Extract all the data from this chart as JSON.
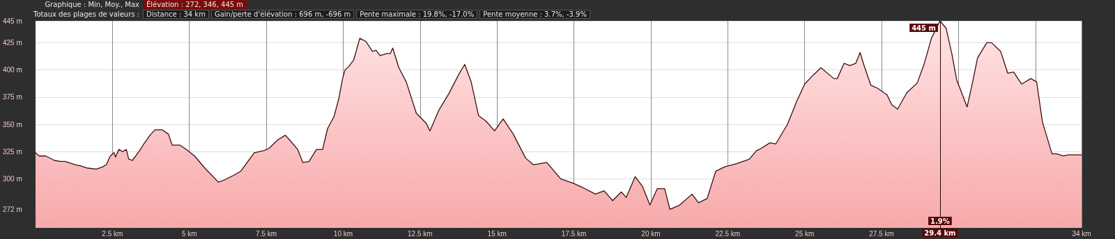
{
  "chart_data": {
    "type": "area",
    "annotations": [
      "Graphique : Min, Moy., Max",
      "Élévation : 272, 346, 445 m",
      "Totaux des plages de valeurs :",
      "Distance : 34 km",
      "Gain/perte d'élévation : 696 m, -696 m",
      "Pente maximale : 19.8%, -17.0%",
      "Pente moyenne : 3.7%, -3.9%",
      {
        "text": "445 m",
        "x": 29.4,
        "y": 445
      },
      {
        "text": "1.9%",
        "x": 29.4
      }
    ],
    "x": [
      0,
      0.12,
      0.33,
      0.61,
      0.81,
      0.97,
      1.17,
      1.29,
      1.46,
      1.66,
      1.98,
      2.18,
      2.3,
      2.43,
      2.55,
      2.6,
      2.71,
      2.83,
      2.95,
      3.03,
      3.15,
      3.36,
      3.52,
      3.72,
      3.88,
      4.12,
      4.32,
      4.44,
      4.69,
      4.85,
      5.17,
      5.5,
      5.94,
      6.14,
      6.42,
      6.67,
      7.11,
      7.43,
      7.59,
      7.88,
      8.12,
      8.28,
      8.52,
      8.69,
      8.89,
      9.13,
      9.33,
      9.49,
      9.7,
      9.86,
      9.98,
      10.06,
      10.18,
      10.34,
      10.54,
      10.74,
      10.95,
      11.07,
      11.2,
      11.41,
      11.53,
      11.61,
      11.81,
      12.05,
      12.38,
      12.7,
      12.82,
      13.11,
      13.43,
      13.76,
      13.95,
      14.16,
      14.4,
      14.64,
      14.92,
      15.2,
      15.53,
      15.93,
      16.18,
      16.62,
      17.07,
      17.47,
      17.79,
      18.2,
      18.48,
      18.76,
      19.04,
      19.2,
      19.49,
      19.73,
      19.97,
      20.21,
      20.45,
      20.62,
      20.94,
      21.34,
      21.55,
      21.83,
      22.11,
      22.4,
      22.8,
      23.2,
      23.44,
      23.53,
      23.87,
      24.06,
      24.44,
      24.74,
      25.0,
      25.27,
      25.53,
      25.95,
      26.06,
      26.28,
      26.47,
      26.66,
      26.8,
      26.93,
      27.15,
      27.38,
      27.68,
      27.83,
      28.02,
      28.32,
      28.66,
      28.89,
      29.12,
      29.4,
      29.6,
      29.79,
      29.94,
      30.28,
      30.43,
      30.62,
      30.92,
      31.07,
      31.37,
      31.6,
      31.79,
      32.05,
      32.35,
      32.54,
      32.73,
      33.04,
      33.19,
      33.41,
      33.56,
      34
    ],
    "series": [
      {
        "color": "#3a0f10",
        "values": [
          324,
          321,
          321,
          317,
          316,
          316,
          314,
          313,
          312,
          310,
          309,
          311,
          313,
          321,
          324,
          320,
          327,
          325,
          327,
          318,
          317,
          325,
          332,
          340,
          345,
          345,
          341,
          331,
          331,
          328,
          321,
          310,
          297,
          299,
          303,
          307,
          324,
          326,
          328,
          336,
          340,
          335,
          327,
          315,
          316,
          327,
          327,
          346,
          357,
          374,
          392,
          400,
          403,
          409,
          429,
          426,
          417,
          418,
          413,
          415,
          415,
          420,
          402,
          389,
          360,
          351,
          344,
          363,
          378,
          396,
          405,
          389,
          358,
          353,
          344,
          355,
          341,
          319,
          313,
          315,
          300,
          296,
          292,
          286,
          289,
          280,
          288,
          283,
          302,
          293,
          276,
          291,
          291,
          272,
          276,
          286,
          278,
          282,
          307,
          311,
          314,
          318,
          326,
          327,
          333,
          332,
          350,
          371,
          387,
          395,
          402,
          392,
          392,
          406,
          404,
          406,
          416,
          404,
          386,
          383,
          377,
          368,
          364,
          379,
          388,
          406,
          429,
          445,
          438,
          414,
          391,
          366,
          385,
          411,
          425,
          425,
          417,
          397,
          398,
          387,
          392,
          389,
          352,
          323,
          323,
          321,
          322,
          322
        ]
      }
    ],
    "xlim": [
      0,
      34
    ],
    "xticks": [
      {
        "value": 2.5,
        "label": "2.5 km"
      },
      {
        "value": 5,
        "label": "5 km"
      },
      {
        "value": 7.5,
        "label": "7.5 km"
      },
      {
        "value": 10,
        "label": "10 km"
      },
      {
        "value": 12.5,
        "label": "12.5 km"
      },
      {
        "value": 15,
        "label": "15 km"
      },
      {
        "value": 17.5,
        "label": "17.5 km"
      },
      {
        "value": 20,
        "label": "20 km"
      },
      {
        "value": 22.5,
        "label": "22.5 km"
      },
      {
        "value": 25,
        "label": "25 km"
      },
      {
        "value": 27.5,
        "label": "27.5 km"
      },
      {
        "value": 30,
        "label": null
      },
      {
        "value": 32.5,
        "label": null
      },
      {
        "value": 34,
        "label": "34 km"
      }
    ],
    "ylim": [
      255,
      445
    ],
    "yticks": [
      {
        "value": 272,
        "label": "272 m"
      },
      {
        "value": 300,
        "label": "300 m"
      },
      {
        "value": 325,
        "label": "325 m"
      },
      {
        "value": 350,
        "label": "350 m"
      },
      {
        "value": 375,
        "label": "375 m"
      },
      {
        "value": 400,
        "label": "400 m"
      },
      {
        "value": 425,
        "label": "425 m"
      },
      {
        "value": 445,
        "label": "445 m"
      }
    ],
    "ref_lines": [
      {
        "axis": "x",
        "value": 29.4,
        "label": "29.4 km",
        "color": "#2a0808"
      }
    ],
    "grid": true,
    "marker": "none",
    "line_style": "solid"
  }
}
